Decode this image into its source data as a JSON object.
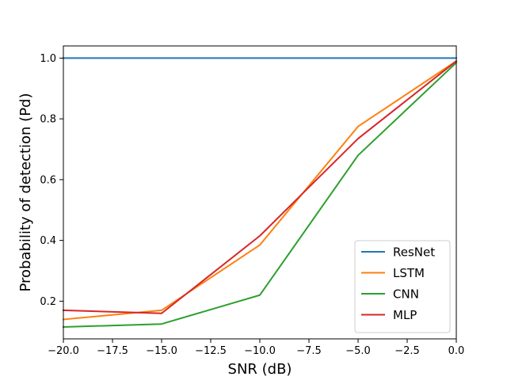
{
  "chart_data": {
    "type": "line",
    "title": "",
    "xlabel": "SNR (dB)",
    "ylabel": "Probability of detection (Pd)",
    "xlim": [
      -20,
      0
    ],
    "ylim": [
      0.076,
      1.04
    ],
    "grid": false,
    "legend_position": "bottom-right",
    "x_ticks": [
      -20,
      -17.5,
      -15,
      -12.5,
      -10,
      -7.5,
      -5,
      -2.5,
      0
    ],
    "x_tick_labels": [
      "−20.0",
      "−17.5",
      "−15.0",
      "−12.5",
      "−10.0",
      "−7.5",
      "−5.0",
      "−2.5",
      "0.0"
    ],
    "y_ticks": [
      0.2,
      0.4,
      0.6,
      0.8,
      1.0
    ],
    "y_tick_labels": [
      "0.2",
      "0.4",
      "0.6",
      "0.8",
      "1.0"
    ],
    "x": [
      -20,
      -15,
      -10,
      -5,
      0
    ],
    "series": [
      {
        "name": "ResNet",
        "color": "#1f77b4",
        "values": [
          1.0,
          1.0,
          1.0,
          1.0,
          1.0
        ]
      },
      {
        "name": "LSTM",
        "color": "#ff7f0e",
        "values": [
          0.14,
          0.17,
          0.385,
          0.775,
          0.99
        ]
      },
      {
        "name": "CNN",
        "color": "#2ca02c",
        "values": [
          0.115,
          0.125,
          0.22,
          0.68,
          0.985
        ]
      },
      {
        "name": "MLP",
        "color": "#d62728",
        "values": [
          0.17,
          0.16,
          0.415,
          0.735,
          0.99
        ]
      }
    ]
  }
}
